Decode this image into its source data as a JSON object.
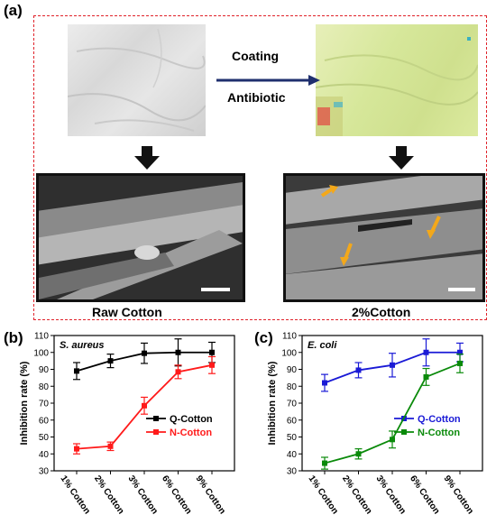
{
  "figure": {
    "panel_a_label": "(a)",
    "panel_b_label": "(b)",
    "panel_c_label": "(c)",
    "coating_label": "Coating",
    "antibiotic_label": "Antibiotic",
    "raw_caption": "Raw Cotton",
    "coated_caption": "2%Cotton",
    "dashed_box_color": "#e0222a",
    "arrow_color": "#1f2f6e",
    "orange_arrow_color": "#f3a81a"
  },
  "chart_data": [
    {
      "type": "line",
      "panel": "(b)",
      "title": "S. aureus",
      "xlabel": "",
      "ylabel": "Inhibition rate (%)",
      "ylim": [
        30,
        110
      ],
      "yticks": [
        30,
        40,
        50,
        60,
        70,
        80,
        90,
        100,
        110
      ],
      "categories": [
        "1% Cotton",
        "2% Cotton",
        "3% Cotton",
        "6% Cotton",
        "9% Cotton"
      ],
      "legend_position": "center-right",
      "series": [
        {
          "name": "Q-Cotton",
          "color": "#000000",
          "values": [
            89,
            95,
            99.5,
            100,
            100
          ],
          "errors": [
            5,
            4,
            6,
            8,
            6
          ]
        },
        {
          "name": "N-Cotton",
          "color": "#ff1a1a",
          "values": [
            43,
            44.5,
            68.5,
            88.5,
            92.5
          ],
          "errors": [
            3,
            2.5,
            5,
            4,
            5
          ]
        }
      ]
    },
    {
      "type": "line",
      "panel": "(c)",
      "title": "E. coli",
      "xlabel": "",
      "ylabel": "Inhibition rate (%)",
      "ylim": [
        30,
        110
      ],
      "yticks": [
        30,
        40,
        50,
        60,
        70,
        80,
        90,
        100,
        110
      ],
      "categories": [
        "1% Cotton",
        "2% Cotton",
        "3% Cotton",
        "6% Cotton",
        "9% Cotton"
      ],
      "legend_position": "center-right",
      "series": [
        {
          "name": "Q-Cotton",
          "color": "#1a1ad6",
          "values": [
            82,
            89.5,
            92.5,
            100,
            100
          ],
          "errors": [
            5,
            4.5,
            7,
            8,
            5.5
          ]
        },
        {
          "name": "N-Cotton",
          "color": "#0a8a0a",
          "values": [
            34.5,
            40,
            48.5,
            85.5,
            93.5
          ],
          "errors": [
            3.5,
            3,
            5,
            5,
            5.5
          ]
        }
      ]
    }
  ]
}
